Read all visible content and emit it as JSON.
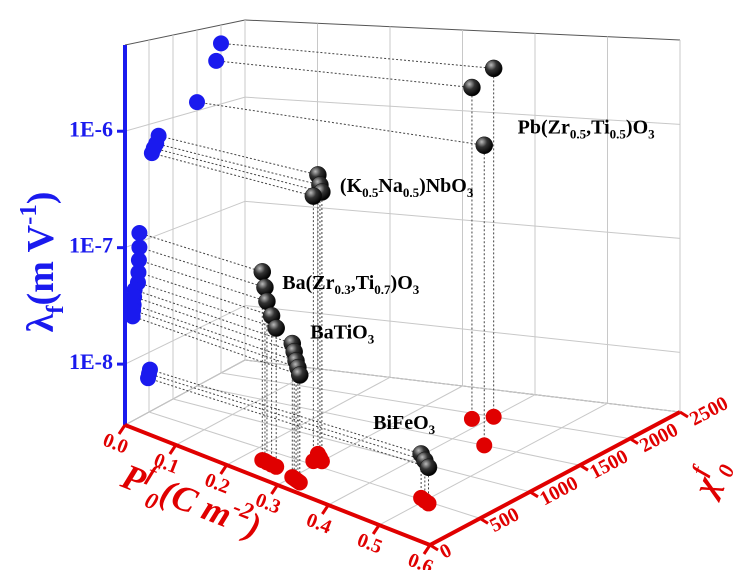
{
  "chart_data": {
    "type": "scatter3d",
    "x_label": [
      {
        "text": "P"
      },
      {
        "text": "f",
        "sup": true
      },
      {
        "text": "0",
        "sub": true
      },
      {
        "text": "(C m"
      },
      {
        "text": "-2",
        "sup": true
      },
      {
        "text": ")"
      }
    ],
    "y_label": [
      {
        "text": "χ"
      },
      {
        "text": "f",
        "sup": true
      },
      {
        "text": "0",
        "sub": true
      }
    ],
    "z_label": [
      {
        "text": "λ"
      },
      {
        "text": "f",
        "sub": true
      },
      {
        "text": "(m V"
      },
      {
        "text": "-1",
        "sup": true
      },
      {
        "text": ")"
      }
    ],
    "xlim": [
      0,
      0.6
    ],
    "xticks": [
      {
        "value": 0,
        "label": "0.0"
      },
      0.1,
      0.2,
      0.3,
      0.4,
      0.5,
      0.6
    ],
    "ylim": [
      0,
      2500
    ],
    "yticks": [
      0,
      500,
      1000,
      1500,
      2000,
      2500
    ],
    "zlim": [
      3e-09,
      5.5e-06
    ],
    "zscale": "log",
    "zticks": [
      {
        "value": 1e-08,
        "label": "1E-8"
      },
      {
        "value": 1e-07,
        "label": "1E-7"
      },
      {
        "value": 1e-06,
        "label": "1E-6"
      }
    ],
    "grid": true,
    "colors": {
      "point": "#111111",
      "wall_projection": "#1a1aee",
      "floor_projection": "#e00000",
      "z_axis": "#1a1aee",
      "floor_axes": "#e00000"
    },
    "series": [
      {
        "name": [
          {
            "text": "Pb(Zr"
          },
          {
            "text": "0.5",
            "sub": true
          },
          {
            "text": ",Ti"
          },
          {
            "text": "0.5",
            "sub": true
          },
          {
            "text": ")O"
          },
          {
            "text": "3",
            "sub": true
          }
        ],
        "x": [
          0.4,
          0.38,
          0.45
        ],
        "y": [
          2000,
          1900,
          1500
        ],
        "z": [
          3.7e-06,
          2.6e-06,
          1.2e-06
        ]
      },
      {
        "name": [
          {
            "text": "(K"
          },
          {
            "text": "0.5",
            "sub": true
          },
          {
            "text": "Na"
          },
          {
            "text": "0.5",
            "sub": true
          },
          {
            "text": ")NbO"
          },
          {
            "text": "3",
            "sub": true
          }
        ],
        "x": [
          0.28,
          0.29,
          0.3,
          0.29
        ],
        "y": [
          700,
          650,
          600,
          560
        ],
        "z": [
          7.5e-07,
          6.5e-07,
          6e-07,
          5.5e-07
        ]
      },
      {
        "name": [
          {
            "text": "Ba(Zr"
          },
          {
            "text": "0.3",
            "sub": true
          },
          {
            "text": ",Ti"
          },
          {
            "text": "0.7",
            "sub": true
          },
          {
            "text": ")O"
          },
          {
            "text": "3",
            "sub": true
          }
        ],
        "x": [
          0.23,
          0.235,
          0.24,
          0.25,
          0.26
        ],
        "y": [
          300,
          300,
          290,
          280,
          270
        ],
        "z": [
          1.2e-07,
          9e-08,
          7e-08,
          5.5e-08,
          4.5e-08
        ]
      },
      {
        "name": [
          {
            "text": "BaTiO"
          },
          {
            "text": "3",
            "sub": true
          }
        ],
        "x": [
          0.3,
          0.305,
          0.31,
          0.315,
          0.32
        ],
        "y": [
          200,
          190,
          180,
          170,
          160
        ],
        "z": [
          4e-08,
          3.5e-08,
          3e-08,
          2.7e-08,
          2.4e-08
        ]
      },
      {
        "name": [
          {
            "text": "BiFeO"
          },
          {
            "text": "3",
            "sub": true
          }
        ],
        "x": [
          0.49,
          0.5,
          0.51
        ],
        "y": [
          520,
          500,
          480
        ],
        "z": [
          7e-09,
          6.5e-09,
          6e-09
        ]
      }
    ]
  }
}
